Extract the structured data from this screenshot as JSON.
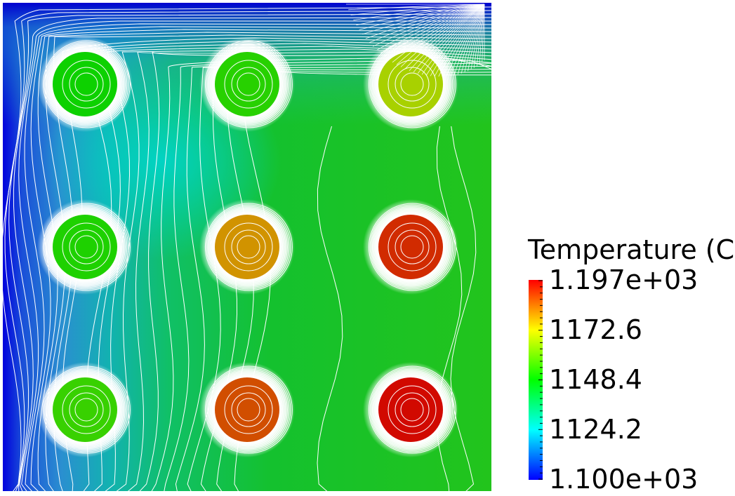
{
  "legend": {
    "title": "Temperature (C)",
    "labels": [
      "1.197e+03",
      "1172.6",
      "1148.4",
      "1124.2",
      "1.100e+03"
    ],
    "min": 1100,
    "max": 1197
  },
  "colormap": [
    "#0000ff",
    "#00ffff",
    "#00ff00",
    "#ffff00",
    "#ff0000"
  ],
  "heat_sources": [
    {
      "row": 1,
      "col": 1,
      "core_temperature": 1150
    },
    {
      "row": 1,
      "col": 2,
      "core_temperature": 1153
    },
    {
      "row": 1,
      "col": 3,
      "core_temperature": 1168
    },
    {
      "row": 2,
      "col": 1,
      "core_temperature": 1152
    },
    {
      "row": 2,
      "col": 2,
      "core_temperature": 1180
    },
    {
      "row": 2,
      "col": 3,
      "core_temperature": 1192
    },
    {
      "row": 3,
      "col": 1,
      "core_temperature": 1155
    },
    {
      "row": 3,
      "col": 2,
      "core_temperature": 1188
    },
    {
      "row": 3,
      "col": 3,
      "core_temperature": 1196
    }
  ]
}
